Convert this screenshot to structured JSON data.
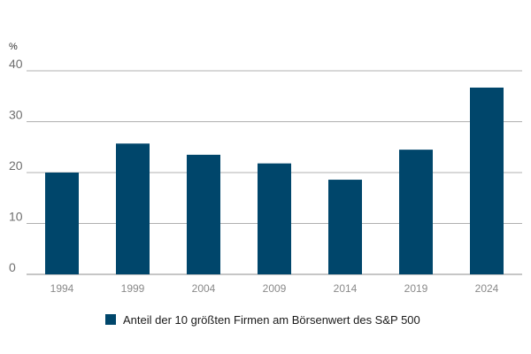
{
  "chart_data": {
    "type": "bar",
    "categories": [
      "1994",
      "1999",
      "2004",
      "2009",
      "2014",
      "2019",
      "2024"
    ],
    "series": [
      {
        "name": "Anteil der 10 größten Firmen am Börsenwert des S&P 500",
        "values": [
          20,
          25.7,
          23.5,
          21.8,
          18.6,
          24.5,
          36.7
        ],
        "color": "#00466b"
      }
    ],
    "unit_label": "%",
    "ylim": [
      0,
      40
    ],
    "yticks": [
      0,
      10,
      20,
      30,
      40
    ],
    "grid": true,
    "legend_position": "bottom-center"
  }
}
